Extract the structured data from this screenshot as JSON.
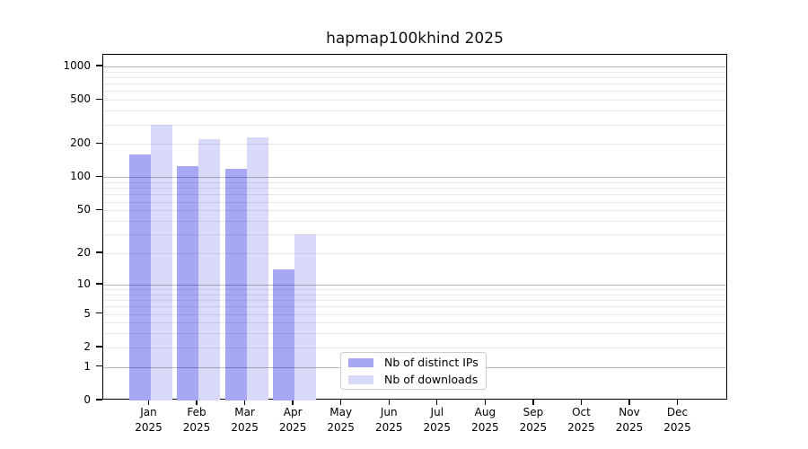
{
  "chart_data": {
    "type": "bar",
    "title": "hapmap100khind 2025",
    "x_tick_year": "2025",
    "categories": [
      "Jan",
      "Feb",
      "Mar",
      "Apr",
      "May",
      "Jun",
      "Jul",
      "Aug",
      "Sep",
      "Oct",
      "Nov",
      "Dec"
    ],
    "series": [
      {
        "name": "Nb of distinct IPs",
        "color": "#a7a7f3",
        "values": [
          160,
          126,
          120,
          14,
          null,
          null,
          null,
          null,
          null,
          null,
          null,
          null
        ]
      },
      {
        "name": "Nb of downloads",
        "color": "#d9daf9",
        "values": [
          300,
          220,
          230,
          30,
          null,
          null,
          null,
          null,
          null,
          null,
          null,
          null
        ]
      }
    ],
    "yscale": "log1p",
    "ylim": [
      0,
      1272
    ],
    "yticks": [
      1000,
      500,
      200,
      100,
      50,
      20,
      10,
      5,
      2,
      1,
      0
    ],
    "grid": {
      "major": [
        1,
        10,
        100,
        1000
      ],
      "minor": [
        2,
        3,
        4,
        5,
        6,
        7,
        8,
        9,
        20,
        30,
        40,
        50,
        60,
        70,
        80,
        90,
        200,
        300,
        400,
        500,
        600,
        700,
        800,
        900
      ]
    },
    "legend_location": "lower center"
  }
}
